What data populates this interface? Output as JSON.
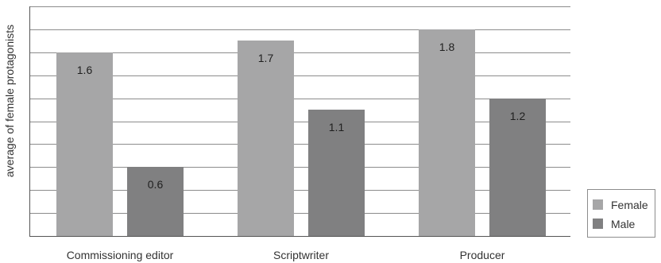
{
  "chart_data": {
    "type": "bar",
    "categories": [
      "Commissioning editor",
      "Scriptwriter",
      "Producer"
    ],
    "series": [
      {
        "name": "Female",
        "values": [
          1.6,
          1.7,
          1.8
        ],
        "color": "#a6a6a7"
      },
      {
        "name": "Male",
        "values": [
          0.6,
          1.1,
          1.2
        ],
        "color": "#808081"
      }
    ],
    "ylabel": "average of female protagonists",
    "ylim": [
      0,
      2.0
    ],
    "grid_interval": 0.2,
    "ytick_labels_shown": false,
    "grid": "horizontal",
    "legend": "bottom-right"
  }
}
